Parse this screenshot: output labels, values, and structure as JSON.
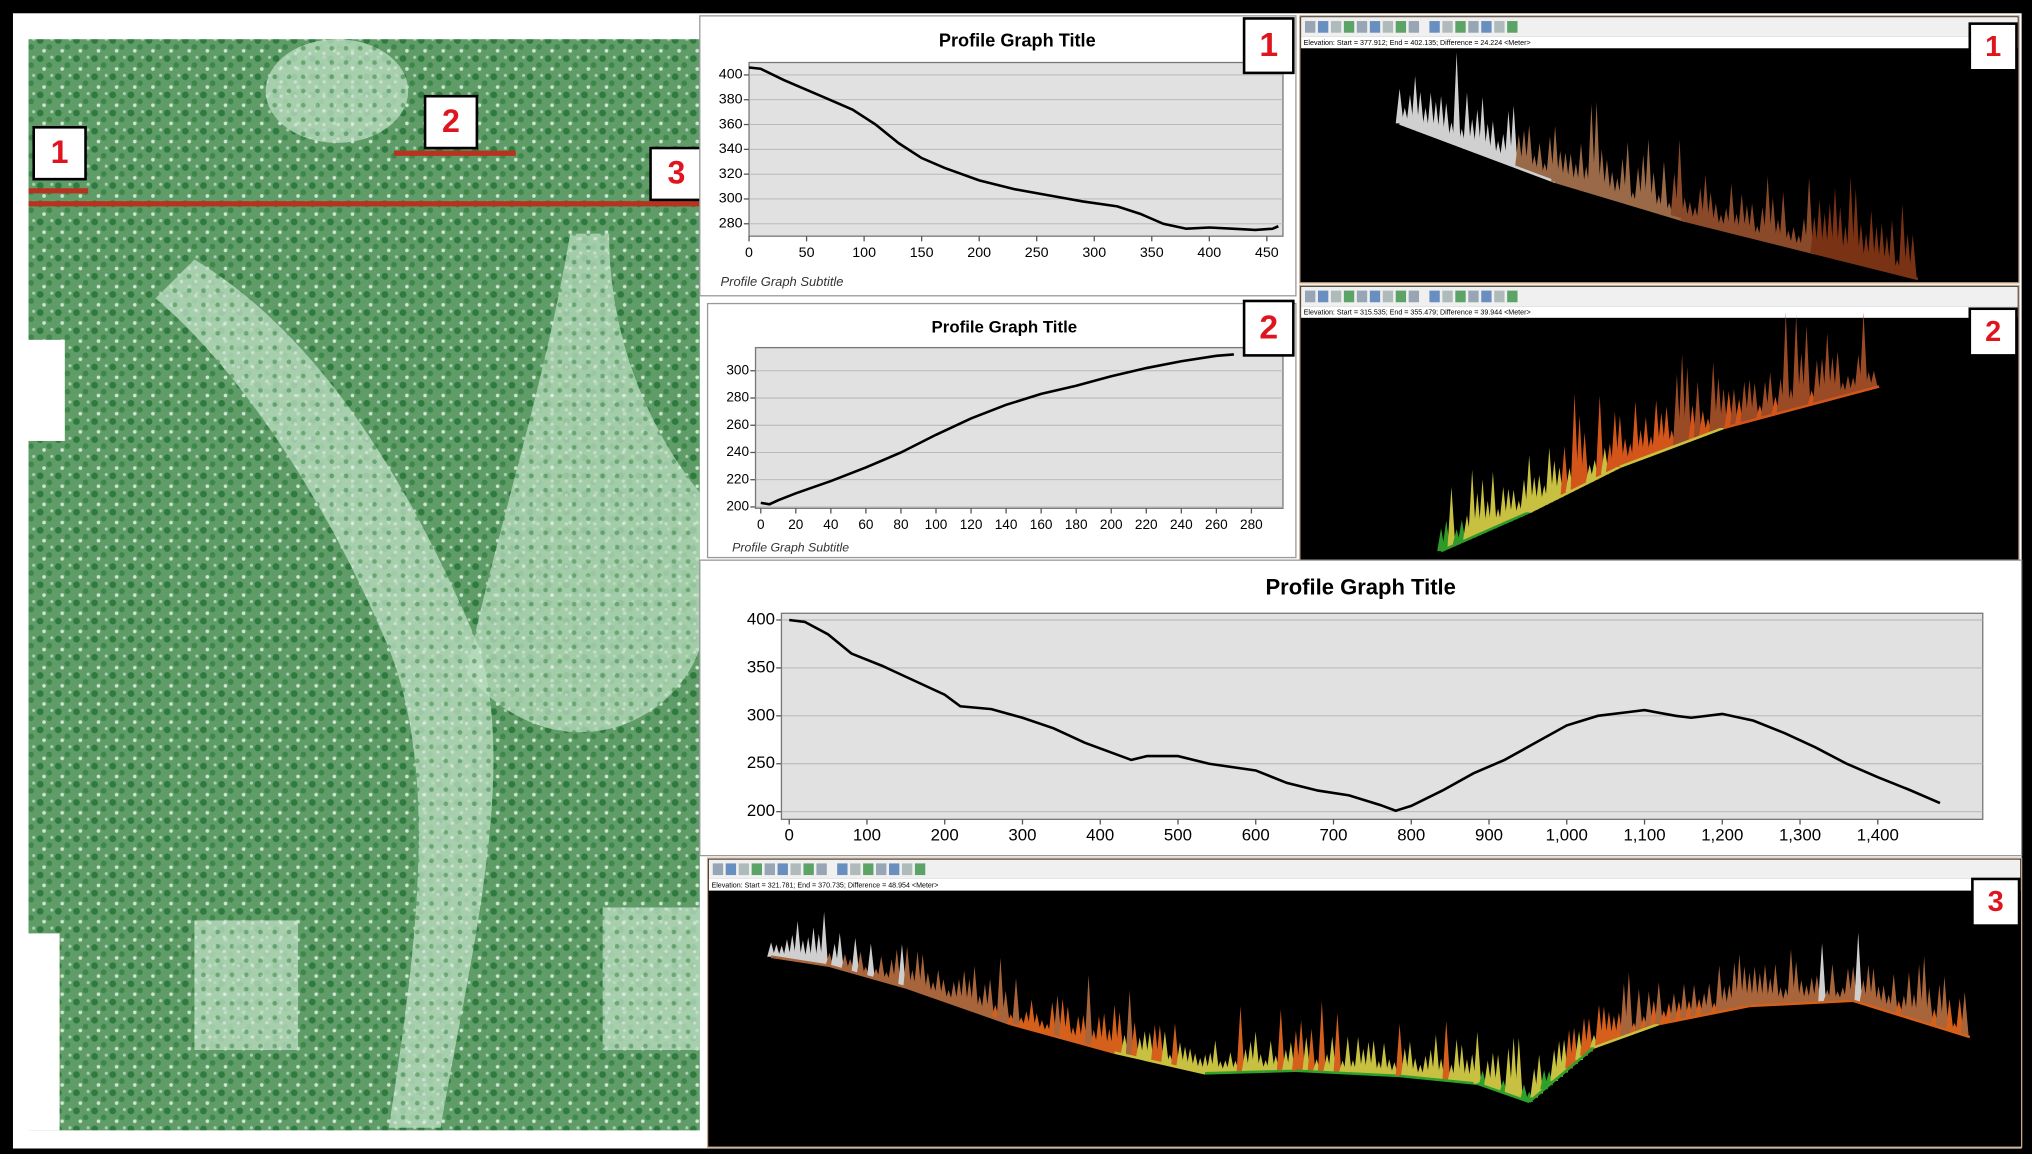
{
  "chart_data": [
    {
      "type": "line",
      "title": "Profile Graph Title",
      "subtitle": "Profile Graph Subtitle",
      "marker": "1",
      "color": "#000000",
      "grid": true,
      "x": [
        0,
        10,
        30,
        50,
        70,
        90,
        110,
        130,
        150,
        170,
        200,
        230,
        260,
        290,
        320,
        340,
        360,
        380,
        400,
        420,
        440,
        455,
        460
      ],
      "values": [
        406,
        405,
        396,
        388,
        380,
        372,
        360,
        345,
        333,
        325,
        315,
        308,
        303,
        298,
        294,
        288,
        280,
        276,
        277,
        276,
        275,
        276,
        278
      ],
      "xlim": [
        0,
        464
      ],
      "xticks": [
        0,
        50,
        100,
        150,
        200,
        250,
        300,
        350,
        400,
        450
      ],
      "ylim": [
        270,
        410
      ],
      "yticks": [
        280,
        300,
        320,
        340,
        360,
        380,
        400
      ]
    },
    {
      "type": "line",
      "title": "Profile Graph Title",
      "subtitle": "Profile Graph Subtitle",
      "marker": "2",
      "color": "#000000",
      "grid": true,
      "x": [
        0,
        5,
        10,
        20,
        40,
        60,
        80,
        100,
        120,
        140,
        160,
        180,
        200,
        220,
        240,
        260,
        270
      ],
      "values": [
        203,
        202,
        205,
        210,
        219,
        229,
        240,
        253,
        265,
        275,
        283,
        289,
        296,
        302,
        307,
        311,
        312
      ],
      "xlim": [
        -3,
        298
      ],
      "xticks": [
        0,
        20,
        40,
        60,
        80,
        100,
        120,
        140,
        160,
        180,
        200,
        220,
        240,
        260,
        280
      ],
      "ylim": [
        199,
        317
      ],
      "yticks": [
        200,
        220,
        240,
        260,
        280,
        300
      ]
    },
    {
      "type": "line",
      "title": "Profile Graph Title",
      "color": "#000000",
      "grid": true,
      "x": [
        0,
        20,
        50,
        80,
        120,
        160,
        200,
        220,
        260,
        300,
        340,
        380,
        420,
        440,
        460,
        500,
        540,
        600,
        640,
        680,
        720,
        760,
        780,
        800,
        840,
        880,
        920,
        960,
        1000,
        1040,
        1080,
        1100,
        1140,
        1160,
        1200,
        1240,
        1280,
        1320,
        1360,
        1400,
        1440,
        1480
      ],
      "values": [
        400,
        398,
        385,
        365,
        352,
        337,
        322,
        310,
        307,
        298,
        287,
        272,
        260,
        254,
        258,
        258,
        250,
        243,
        230,
        222,
        217,
        207,
        201,
        206,
        222,
        240,
        254,
        272,
        290,
        300,
        304,
        306,
        300,
        298,
        302,
        295,
        282,
        267,
        250,
        236,
        223,
        209
      ],
      "xlim": [
        -10,
        1535
      ],
      "xticks": [
        0,
        100,
        200,
        300,
        400,
        500,
        600,
        700,
        800,
        900,
        {
          "value": 1000,
          "label": "1,000"
        },
        {
          "value": 1100,
          "label": "1,100"
        },
        {
          "value": 1200,
          "label": "1,200"
        },
        {
          "value": 1300,
          "label": "1,300"
        },
        {
          "value": 1400,
          "label": "1,400"
        }
      ],
      "ylim": [
        192,
        407
      ],
      "yticks": [
        200,
        250,
        300,
        350,
        400
      ]
    }
  ],
  "map": {
    "labels": [
      "1",
      "2",
      "3"
    ]
  },
  "profiles": [
    {
      "label": "1",
      "status": "Elevation: Start = 377.912; End = 402.135; Difference = 24.224 <Meter>"
    },
    {
      "label": "2",
      "status": "Elevation: Start = 315.535; End = 355.479; Difference = 39.944 <Meter>"
    },
    {
      "label": "3",
      "status": "Elevation: Start = 321.781; End = 370.735; Difference = 48.954 <Meter>"
    }
  ]
}
